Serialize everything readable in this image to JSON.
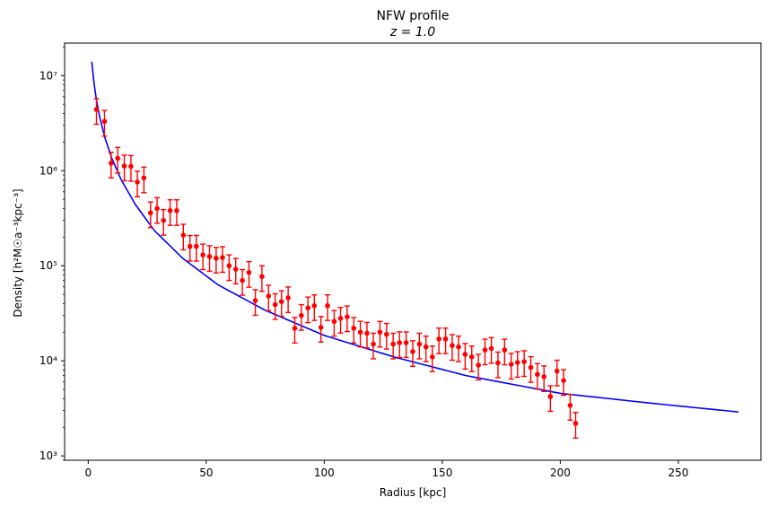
{
  "chart_data": {
    "type": "scatter",
    "title": "NFW profile",
    "subtitle": "z = 1.0",
    "xlabel": "Radius [kpc]",
    "ylabel": "Density [h²M☉a⁻³kpc⁻³]",
    "xlim": [
      -10,
      285
    ],
    "ylim": [
      900,
      22000000
    ],
    "yscale": "log",
    "grid": false,
    "x_ticks": [
      0,
      50,
      100,
      150,
      200,
      250
    ],
    "x_tick_labels": [
      "0",
      "50",
      "100",
      "150",
      "200",
      "250"
    ],
    "y_ticks": [
      1000,
      10000,
      100000,
      1000000,
      10000000
    ],
    "y_tick_labels": [
      "10³",
      "10⁴",
      "10⁵",
      "10⁶",
      "10⁷"
    ],
    "series": [
      {
        "type": "line",
        "color": "#0000ff",
        "x": [
          1.5,
          2.5,
          3.5,
          5,
          7,
          10,
          14,
          20,
          28,
          40,
          55,
          75,
          100,
          130,
          160,
          200,
          240,
          275.5
        ],
        "y": [
          14000000,
          8200000,
          5500000,
          3550000,
          2250000,
          1350000,
          800000,
          440000,
          235000,
          120000,
          63000,
          34000,
          18500,
          10900,
          7000,
          4550,
          3550,
          2900
        ]
      },
      {
        "type": "errorbar",
        "color": "#ff0000",
        "x": [
          3.5,
          6.9,
          9.7,
          12.5,
          15.3,
          18.1,
          20.8,
          23.6,
          26.4,
          29.2,
          31.9,
          34.7,
          37.5,
          40.3,
          43.1,
          45.8,
          48.6,
          51.4,
          54.2,
          56.9,
          59.7,
          62.5,
          65.3,
          68.1,
          70.8,
          73.6,
          76.4,
          79.2,
          81.9,
          84.7,
          87.5,
          90.3,
          93.1,
          95.8,
          98.6,
          101.4,
          104.2,
          106.9,
          109.7,
          112.5,
          115.3,
          118.1,
          120.8,
          123.6,
          126.4,
          129.2,
          131.9,
          134.7,
          137.5,
          140.3,
          143.1,
          145.8,
          148.6,
          151.4,
          154.2,
          156.9,
          159.7,
          162.5,
          165.3,
          168.1,
          170.8,
          173.6,
          176.4,
          179.2,
          181.9,
          184.7,
          187.5,
          190.3,
          193.1,
          195.8,
          198.6,
          201.4,
          204.2,
          206.5
        ],
        "y": [
          4400000,
          3300000,
          1200000,
          1350000,
          1120000,
          1110000,
          760000,
          840000,
          360000,
          400000,
          300000,
          380000,
          380000,
          210000,
          160000,
          160000,
          130000,
          125000,
          120000,
          122000,
          100000,
          92000,
          70000,
          85000,
          43000,
          77000,
          48000,
          39000,
          42000,
          46000,
          22000,
          30000,
          36000,
          38000,
          22500,
          38000,
          26000,
          28000,
          29000,
          22000,
          20000,
          19500,
          15000,
          20000,
          19000,
          15000,
          15500,
          15500,
          12500,
          15000,
          14000,
          11000,
          17000,
          17000,
          14500,
          14000,
          11700,
          11000,
          9000,
          13000,
          13500,
          9500,
          13000,
          9200,
          9600,
          9800,
          8500,
          7200,
          6800,
          4200,
          7800,
          6200,
          3400,
          2200
        ],
        "yerr_rel": 0.3
      }
    ]
  }
}
